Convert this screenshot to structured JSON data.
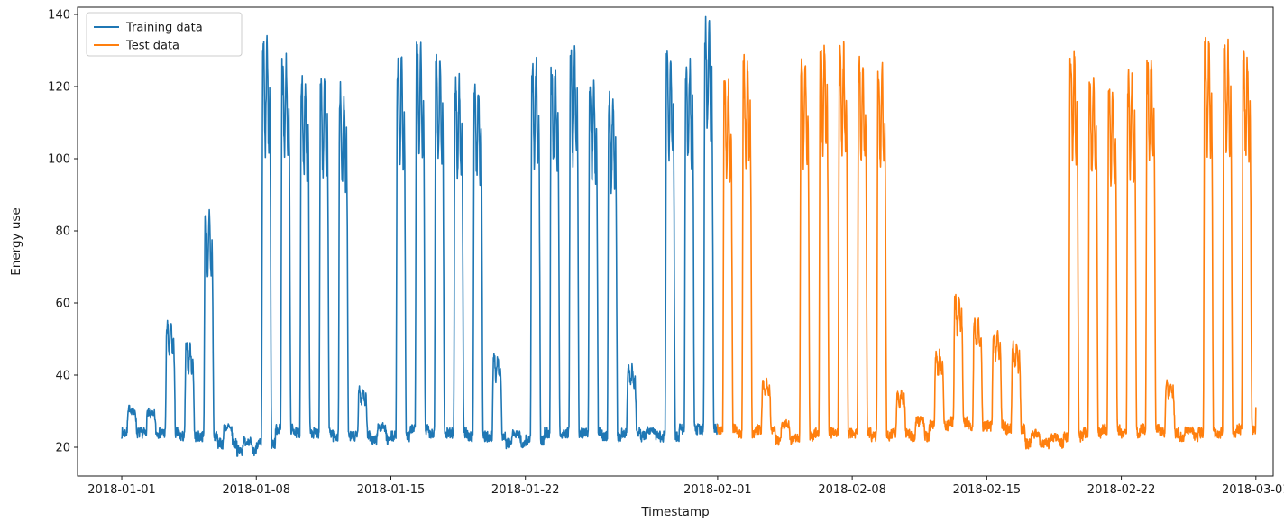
{
  "figure": {
    "background": "#ffffff",
    "text_color": "#1a1a1a",
    "spine_color": "#1a1a1a"
  },
  "chart_data": {
    "type": "line",
    "title": "",
    "xlabel": "Timestamp",
    "ylabel": "Energy use",
    "x_day_zero": "2018-01-01",
    "x_domain_days": [
      -2.3,
      59.9
    ],
    "ylim": [
      12,
      142
    ],
    "y_ticks": [
      20,
      40,
      60,
      80,
      100,
      120,
      140
    ],
    "x_ticks": [
      {
        "day": 0,
        "label": "2018-01-01"
      },
      {
        "day": 7,
        "label": "2018-01-08"
      },
      {
        "day": 14,
        "label": "2018-01-15"
      },
      {
        "day": 21,
        "label": "2018-01-22"
      },
      {
        "day": 31,
        "label": "2018-02-01"
      },
      {
        "day": 38,
        "label": "2018-02-08"
      },
      {
        "day": 45,
        "label": "2018-02-15"
      },
      {
        "day": 52,
        "label": "2018-02-22"
      },
      {
        "day": 59,
        "label": "2018-03-01"
      }
    ],
    "grid": false,
    "legend": {
      "position": "upper left",
      "entries": [
        {
          "label": "Training data",
          "color": "#1f77b4"
        },
        {
          "label": "Test data",
          "color": "#ff7f0e"
        }
      ]
    },
    "series": [
      {
        "name": "Training data",
        "color": "#1f77b4",
        "start_date": "2018-01-01",
        "end_date": "2018-02-01",
        "start_day": 0,
        "daily_peak": [
          31,
          30,
          54,
          48,
          84,
          26,
          22,
          132,
          127,
          121,
          121,
          118,
          36,
          26,
          127,
          131,
          127,
          121,
          120,
          45,
          24,
          126,
          126,
          128,
          121,
          117,
          42,
          25,
          129,
          126,
          137
        ],
        "daily_base": [
          24,
          24,
          24,
          23,
          23,
          21,
          19,
          21,
          25,
          24,
          24,
          23,
          23,
          22,
          23,
          25,
          24,
          24,
          23,
          23,
          21,
          22,
          24,
          24,
          24,
          23,
          24,
          23,
          23,
          25,
          25
        ],
        "end_value": 25
      },
      {
        "name": "Test data",
        "color": "#ff7f0e",
        "start_date": "2018-02-01",
        "end_date": "2018-03-01",
        "start_day": 31,
        "daily_peak": [
          121,
          126,
          38,
          27,
          127,
          131,
          130,
          126,
          125,
          35,
          28,
          46,
          61,
          55,
          52,
          48,
          24,
          23,
          129,
          122,
          119,
          122,
          127,
          38,
          25,
          131,
          130,
          128
        ],
        "daily_base": [
          25,
          24,
          25,
          22,
          23,
          24,
          24,
          24,
          23,
          24,
          23,
          26,
          27,
          26,
          26,
          25,
          21,
          21,
          23,
          24,
          25,
          24,
          25,
          24,
          23,
          24,
          24,
          25
        ],
        "end_value": 31
      }
    ]
  }
}
